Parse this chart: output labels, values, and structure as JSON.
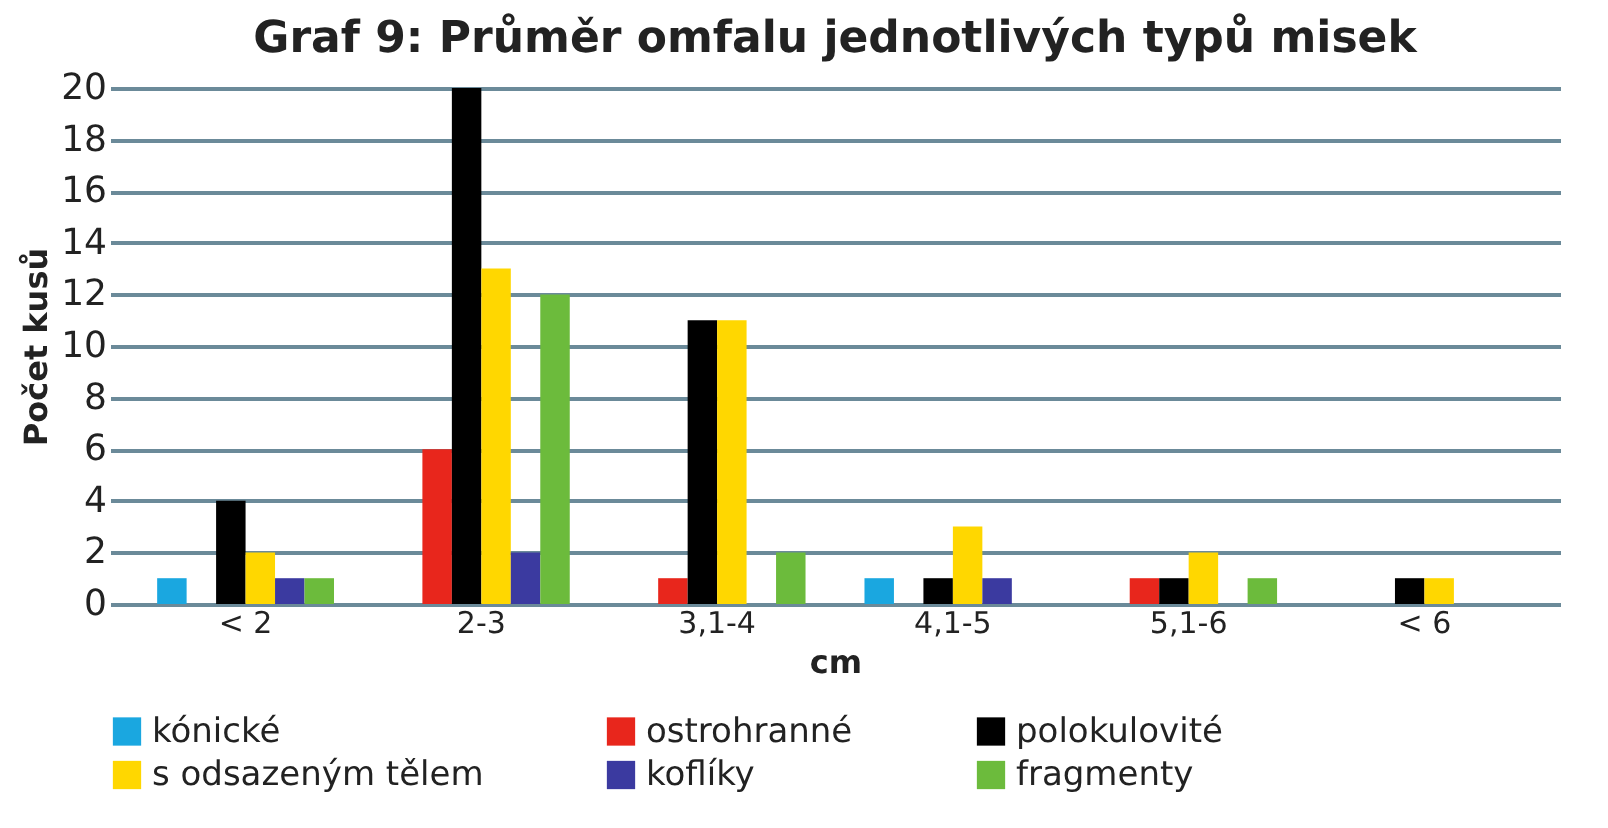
{
  "chart_data": {
    "type": "bar",
    "title": "Graf 9: Průměr omfalu jednotlivých typů misek",
    "xlabel": "cm",
    "ylabel": "Počet kusů",
    "categories": [
      "< 2",
      "2-3",
      "3,1-4",
      "4,1-5",
      "5,1-6",
      "< 6"
    ],
    "ylim": [
      0,
      20
    ],
    "yticks": [
      0,
      2,
      4,
      6,
      8,
      10,
      12,
      14,
      16,
      18,
      20
    ],
    "grid": "y",
    "legend": "bottom",
    "series": [
      {
        "name": "kónické",
        "color": "#1aa7e0",
        "values": [
          1,
          null,
          null,
          1,
          null,
          null
        ]
      },
      {
        "name": "ostrohranné",
        "color": "#e8261c",
        "values": [
          null,
          6,
          1,
          null,
          1,
          null
        ]
      },
      {
        "name": "polokulovité",
        "color": "#000000",
        "values": [
          4,
          20,
          11,
          1,
          1,
          1
        ]
      },
      {
        "name": "s odsazeným tělem",
        "color": "#ffd700",
        "values": [
          2,
          13,
          11,
          3,
          2,
          1
        ]
      },
      {
        "name": "koflíky",
        "color": "#3b3aa0",
        "values": [
          1,
          2,
          null,
          1,
          null,
          null
        ]
      },
      {
        "name": "fragmenty",
        "color": "#6cbb3c",
        "values": [
          1,
          12,
          2,
          null,
          1,
          null
        ]
      }
    ]
  }
}
